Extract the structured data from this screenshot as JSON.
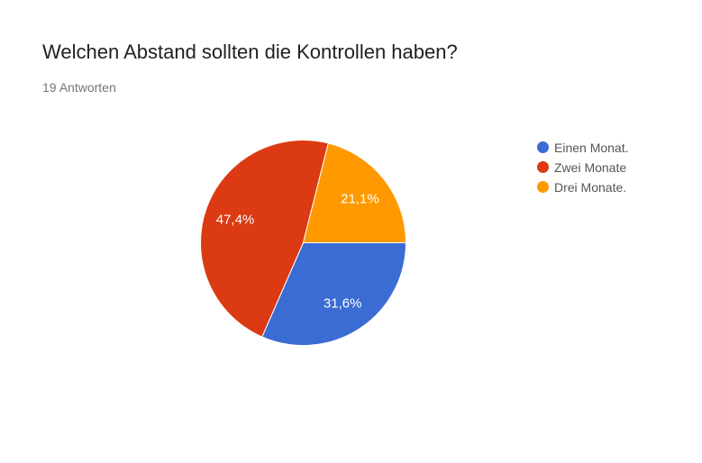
{
  "chart_data": {
    "type": "pie",
    "title": "Welchen Abstand sollten die Kontrollen haben?",
    "subtitle": "19 Antworten",
    "total_responses_text": "19 Antworten",
    "legend_position": "right",
    "grid": false,
    "start_angle_deg": 90,
    "label_radius_fraction": 0.7,
    "background_color": "#ffffff",
    "slice_separator_color": "#ffffff",
    "slices": [
      {
        "id": "einen-monat",
        "label": "Einen Monat.",
        "value": 31.6,
        "percent_label": "31,6%",
        "color": "#3b6cd3"
      },
      {
        "id": "zwei-monate",
        "label": "Zwei Monate",
        "value": 47.4,
        "percent_label": "47,4%",
        "color": "#db3a12"
      },
      {
        "id": "drei-monate",
        "label": "Drei Monate.",
        "value": 21.1,
        "percent_label": "21,1%",
        "color": "#ff9900"
      }
    ]
  }
}
